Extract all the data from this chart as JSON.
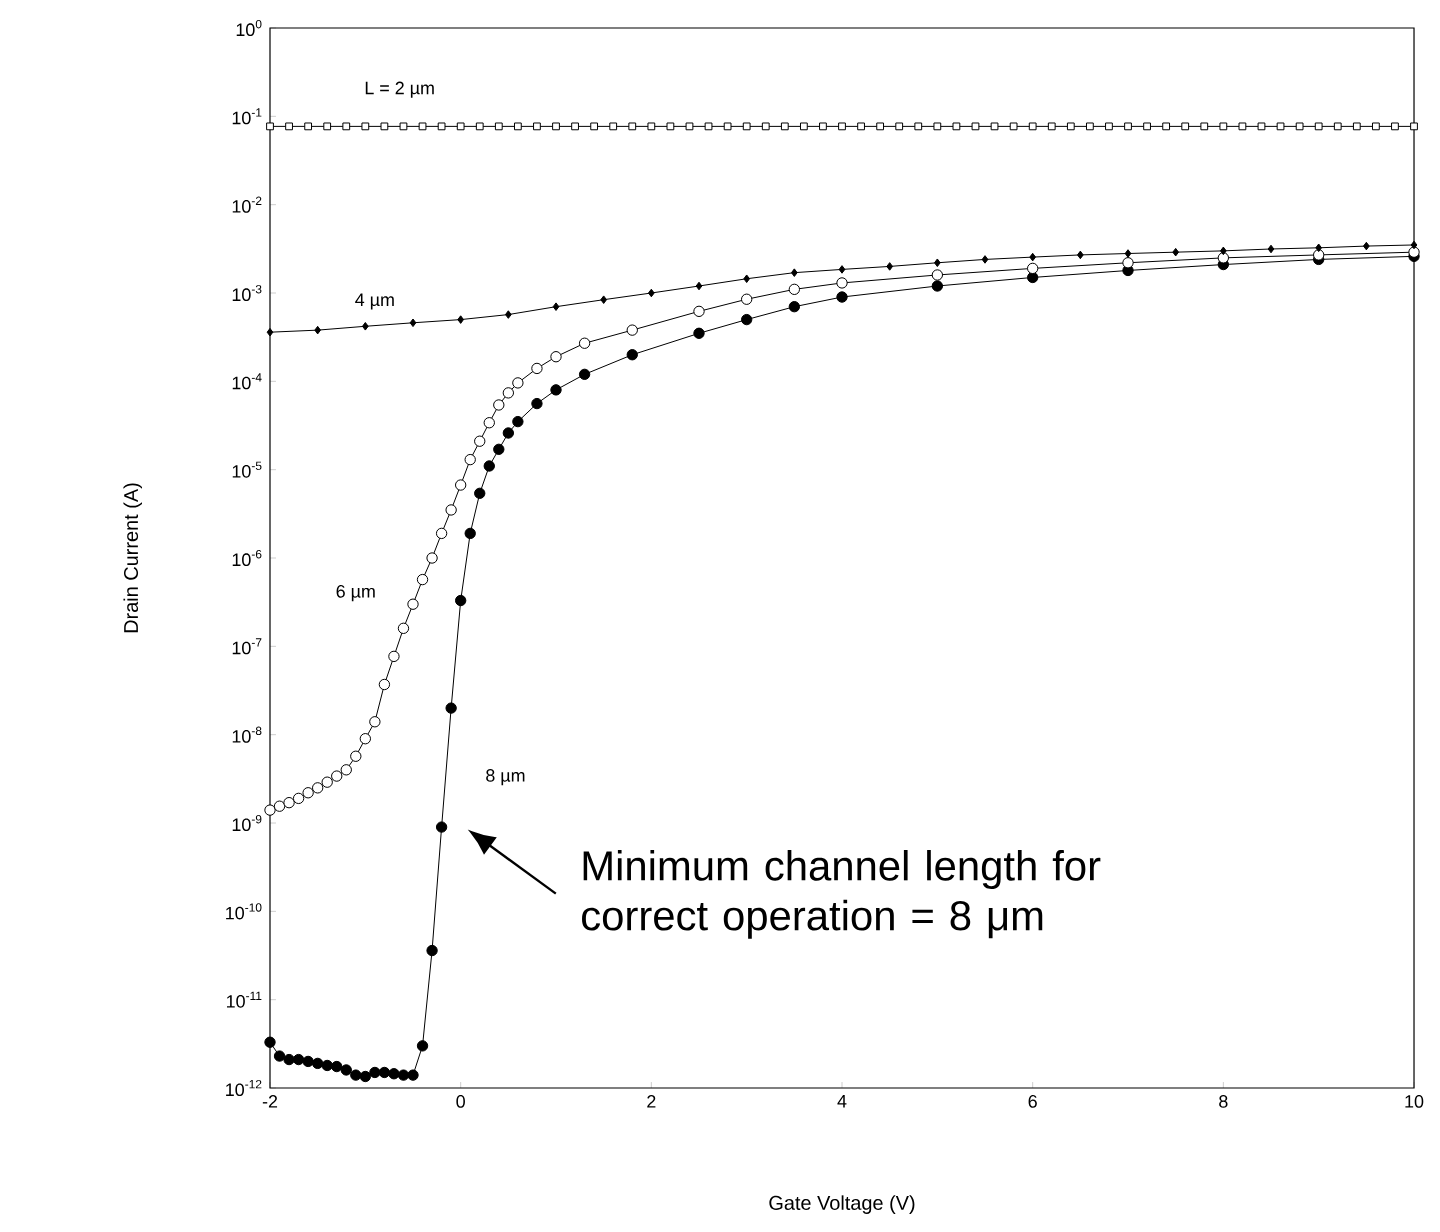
{
  "chart_data": {
    "type": "line",
    "xlabel": "Gate Voltage (V)",
    "ylabel": "Drain Current (A)",
    "log": "y",
    "xlim": [
      -2,
      10
    ],
    "xticks": [
      -2,
      0,
      2,
      4,
      6,
      8,
      10
    ],
    "ylim": [
      1e-12,
      1
    ],
    "yticks": [
      {
        "value": 1,
        "label": "10$^{0}$"
      },
      {
        "value": 0.1,
        "label": "10$^{-1}$"
      },
      {
        "value": 0.01,
        "label": "10$^{-2}$"
      },
      {
        "value": 0.001,
        "label": "10$^{-3}$"
      },
      {
        "value": 0.0001,
        "label": "10$^{-4}$"
      },
      {
        "value": 1e-05,
        "label": "10$^{-5}$"
      },
      {
        "value": 1e-06,
        "label": "10$^{-6}$"
      },
      {
        "value": 1e-07,
        "label": "10$^{-7}$"
      },
      {
        "value": 1e-08,
        "label": "10$^{-8}$"
      },
      {
        "value": 1e-09,
        "label": "10$^{-9}$"
      },
      {
        "value": 1e-10,
        "label": "10$^{-10}$"
      },
      {
        "value": 1e-11,
        "label": "10$^{-11}$"
      },
      {
        "value": 1e-12,
        "label": "10$^{-12}$"
      }
    ],
    "grid": false,
    "line_style": "solid",
    "series": [
      {
        "name": "L = 2 µm",
        "color": "#000000",
        "marker": "square",
        "x": [
          -2,
          -1.8,
          -1.6,
          -1.4,
          -1.2,
          -1,
          -0.8,
          -0.6,
          -0.4,
          -0.2,
          0,
          0.2,
          0.4,
          0.6,
          0.8,
          1,
          1.2,
          1.4,
          1.6,
          1.8,
          2,
          2.2,
          2.4,
          2.6,
          2.8,
          3,
          3.2,
          3.4,
          3.6,
          3.8,
          4,
          4.2,
          4.4,
          4.6,
          4.8,
          5,
          5.2,
          5.4,
          5.6,
          5.8,
          6,
          6.2,
          6.4,
          6.6,
          6.8,
          7,
          7.2,
          7.4,
          7.6,
          7.8,
          8,
          8.2,
          8.4,
          8.6,
          8.8,
          9,
          9.2,
          9.4,
          9.6,
          9.8,
          10
        ],
        "values": [
          0.077,
          0.077,
          0.077,
          0.077,
          0.077,
          0.077,
          0.077,
          0.077,
          0.077,
          0.077,
          0.077,
          0.077,
          0.077,
          0.077,
          0.077,
          0.077,
          0.077,
          0.077,
          0.077,
          0.077,
          0.077,
          0.077,
          0.077,
          0.077,
          0.077,
          0.077,
          0.077,
          0.077,
          0.077,
          0.077,
          0.077,
          0.077,
          0.077,
          0.077,
          0.077,
          0.077,
          0.077,
          0.077,
          0.077,
          0.077,
          0.077,
          0.077,
          0.077,
          0.077,
          0.077,
          0.077,
          0.077,
          0.077,
          0.077,
          0.077,
          0.077,
          0.077,
          0.077,
          0.077,
          0.077,
          0.077,
          0.077,
          0.077,
          0.077,
          0.077,
          0.077
        ]
      },
      {
        "name": "4 µm",
        "color": "#000000",
        "marker": "diamond",
        "x": [
          -2,
          -1.5,
          -1,
          -0.5,
          0,
          0.5,
          1,
          1.5,
          2,
          2.5,
          3,
          3.5,
          4,
          4.5,
          5,
          5.5,
          6,
          6.5,
          7,
          7.5,
          8,
          8.5,
          9,
          9.5,
          10
        ],
        "values": [
          0.00036,
          0.00038,
          0.00042,
          0.00046,
          0.0005,
          0.00057,
          0.0007,
          0.00084,
          0.001,
          0.0012,
          0.00145,
          0.0017,
          0.00185,
          0.002,
          0.0022,
          0.0024,
          0.00255,
          0.0027,
          0.0028,
          0.0029,
          0.003,
          0.00315,
          0.00325,
          0.0034,
          0.0035
        ]
      },
      {
        "name": "6 µm",
        "color": "#000000",
        "marker": "circle",
        "x": [
          -2,
          -1.9,
          -1.8,
          -1.7,
          -1.6,
          -1.5,
          -1.4,
          -1.3,
          -1.2,
          -1.1,
          -1,
          -0.9,
          -0.8,
          -0.7,
          -0.6,
          -0.5,
          -0.4,
          -0.3,
          -0.2,
          -0.1,
          0,
          0.1,
          0.2,
          0.3,
          0.4,
          0.5,
          0.6,
          0.8,
          1,
          1.3,
          1.8,
          2.5,
          3,
          3.5,
          4,
          5,
          6,
          7,
          8,
          9,
          10
        ],
        "values": [
          1.4e-09,
          1.55e-09,
          1.7e-09,
          1.9e-09,
          2.2e-09,
          2.5e-09,
          2.9e-09,
          3.4e-09,
          4e-09,
          5.7e-09,
          9e-09,
          1.4e-08,
          3.7e-08,
          7.7e-08,
          1.6e-07,
          3e-07,
          5.7e-07,
          1e-06,
          1.9e-06,
          3.5e-06,
          6.7e-06,
          1.3e-05,
          2.1e-05,
          3.4e-05,
          5.4e-05,
          7.4e-05,
          9.6e-05,
          0.00014,
          0.00019,
          0.00027,
          0.00038,
          0.00062,
          0.00085,
          0.0011,
          0.0013,
          0.0016,
          0.0019,
          0.0022,
          0.0025,
          0.0027,
          0.0029
        ]
      },
      {
        "name": "8 µm",
        "color": "#000000",
        "marker": "circle",
        "x": [
          -2,
          -1.9,
          -1.8,
          -1.7,
          -1.6,
          -1.5,
          -1.4,
          -1.3,
          -1.2,
          -1.1,
          -1,
          -0.9,
          -0.8,
          -0.7,
          -0.6,
          -0.5,
          -0.4,
          -0.3,
          -0.2,
          -0.1,
          0,
          0.1,
          0.2,
          0.3,
          0.4,
          0.5,
          0.6,
          0.8,
          1,
          1.3,
          1.8,
          2.5,
          3,
          3.5,
          4,
          5,
          6,
          7,
          8,
          9,
          10
        ],
        "values": [
          3.3e-12,
          2.3e-12,
          2.1e-12,
          2.1e-12,
          2e-12,
          1.9e-12,
          1.8e-12,
          1.75e-12,
          1.6e-12,
          1.4e-12,
          1.35e-12,
          1.5e-12,
          1.5e-12,
          1.45e-12,
          1.4e-12,
          1.4e-12,
          3e-12,
          3.6e-11,
          9e-10,
          2e-08,
          3.3e-07,
          1.9e-06,
          5.4e-06,
          1.1e-05,
          1.7e-05,
          2.6e-05,
          3.5e-05,
          5.6e-05,
          8e-05,
          0.00012,
          0.0002,
          0.00035,
          0.0005,
          0.0007,
          0.0009,
          0.0012,
          0.0015,
          0.0018,
          0.0021,
          0.0024,
          0.0026
        ]
      }
    ],
    "annotations": [
      "Minimum channel length for correct operation = 8 μm"
    ]
  }
}
